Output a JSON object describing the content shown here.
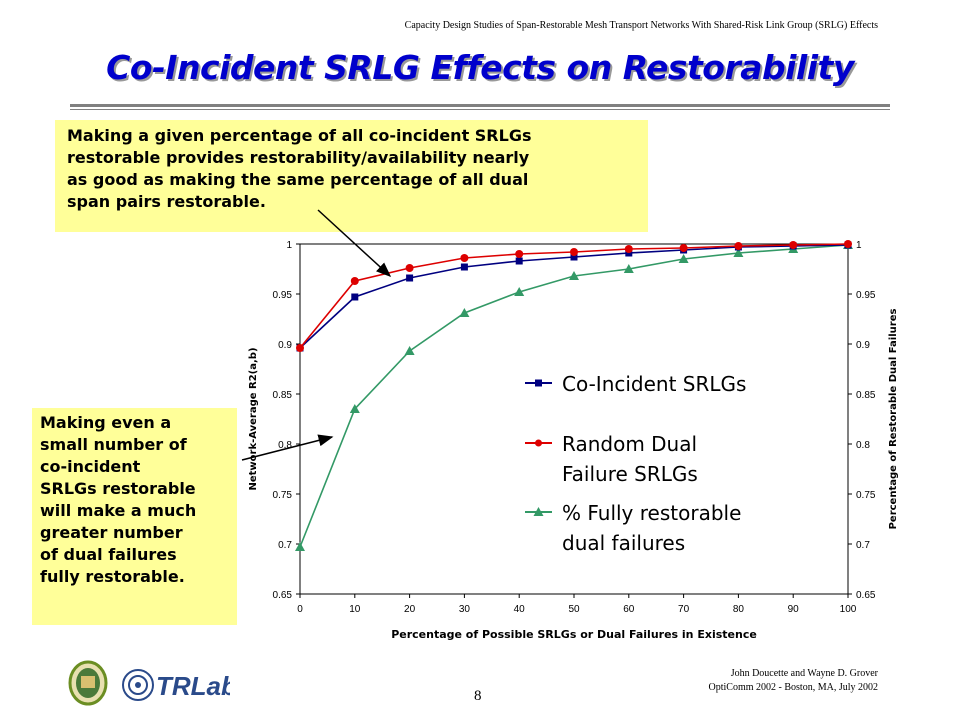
{
  "header": {
    "running_title": "Capacity Design Studies of Span-Restorable Mesh Transport Networks With Shared-Risk Link Group (SRLG) Effects",
    "slide_title": "Co-Incident SRLG Effects on Restorability"
  },
  "callouts": {
    "top": "Making a given percentage of all co-incident SRLGs\nrestorable provides restorability/availability nearly\nas good as making the same percentage of all dual\nspan pairs restorable.",
    "left": "Making even a\nsmall number of\nco-incident\nSRLGs restorable\nwill make a much\ngreater number\nof dual failures\nfully restorable."
  },
  "chart_data": {
    "type": "line",
    "x": [
      0,
      10,
      20,
      30,
      40,
      50,
      60,
      70,
      80,
      90,
      100
    ],
    "xlabel": "Percentage of Possible SRLGs or Dual Failures in Existence",
    "ylabel_left": "Network-Average R2(a,b)",
    "ylabel_right": "Percentage of Restorable Dual Failures",
    "ylim": [
      0.65,
      1
    ],
    "yticks": [
      0.65,
      0.7,
      0.75,
      0.8,
      0.85,
      0.9,
      0.95,
      1
    ],
    "xticks": [
      0,
      10,
      20,
      30,
      40,
      50,
      60,
      70,
      80,
      90,
      100
    ],
    "grid": false,
    "legend_position": "inside-right",
    "series": [
      {
        "name": "Co-Incident SRLGs",
        "color": "#000080",
        "marker": "square",
        "values": [
          0.896,
          0.947,
          0.966,
          0.977,
          0.983,
          0.987,
          0.991,
          0.994,
          0.997,
          0.998,
          0.999
        ]
      },
      {
        "name": "Random Dual Failure SRLGs",
        "color": "#dd0000",
        "marker": "circle",
        "values": [
          0.896,
          0.963,
          0.976,
          0.986,
          0.99,
          0.992,
          0.995,
          0.996,
          0.998,
          0.999,
          1.0
        ]
      },
      {
        "name": "% Fully restorable dual failures",
        "color": "#339966",
        "marker": "triangle",
        "values": [
          0.697,
          0.835,
          0.893,
          0.931,
          0.952,
          0.968,
          0.975,
          0.985,
          0.991,
          0.995,
          0.999
        ]
      }
    ],
    "legend_labels": [
      "Co-Incident SRLGs",
      "Random Dual\nFailure SRLGs",
      "% Fully restorable\ndual failures"
    ]
  },
  "footer": {
    "authors": "John Doucette and Wayne D. Grover",
    "venue": "OptiComm 2002 - Boston, MA, July 2002",
    "page_number": "8",
    "logo_text": "TRLabs"
  },
  "colors": {
    "title": "#0000cc",
    "callout_bg": "#ffff99"
  }
}
